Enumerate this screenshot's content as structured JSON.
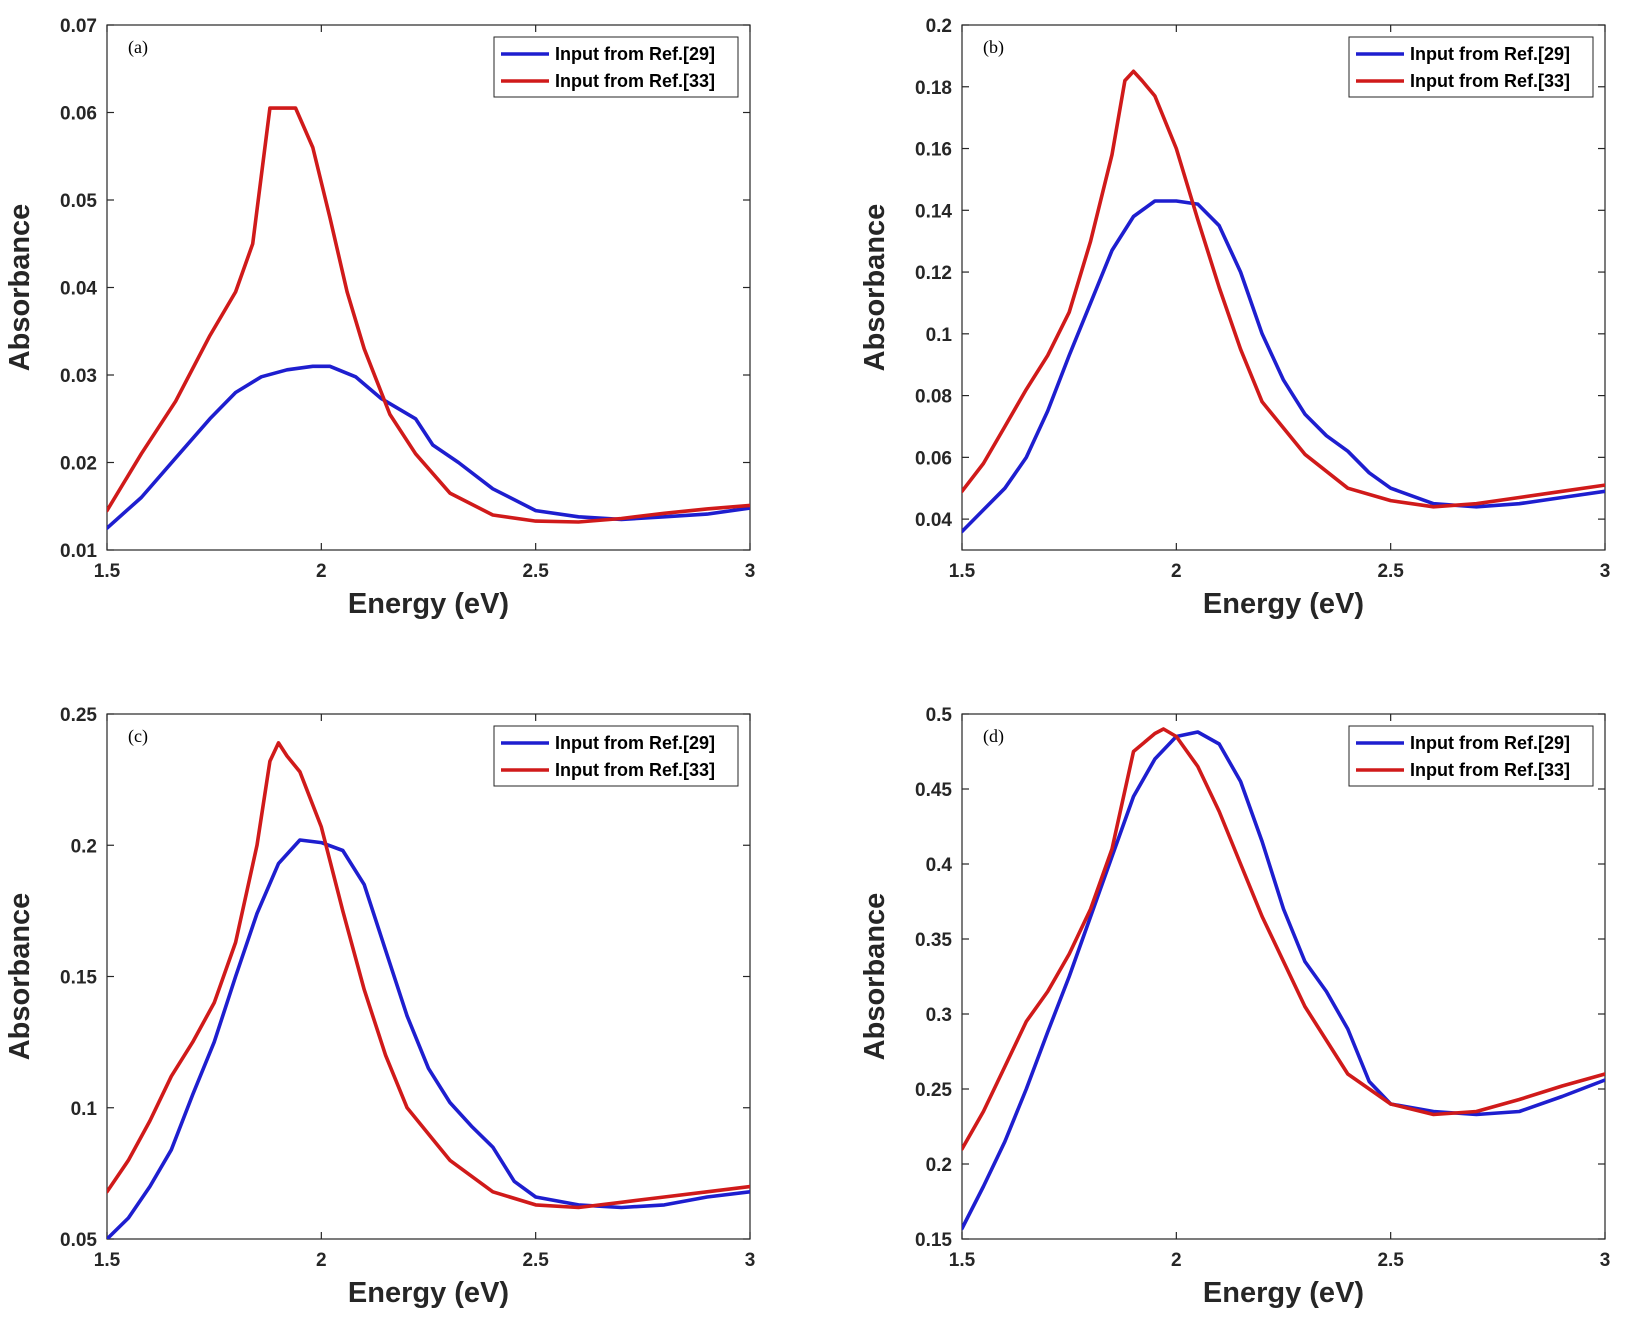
{
  "colors": {
    "series_29": "#1e1ecf",
    "series_33": "#d01a1a",
    "axes": "#262626"
  },
  "chart_data": [
    {
      "type": "line",
      "panel_label": "(a)",
      "xlabel": "Energy (eV)",
      "ylabel": "Absorbance",
      "xlim": [
        1.5,
        3
      ],
      "ylim": [
        0.01,
        0.07
      ],
      "xticks": [
        1.5,
        2,
        2.5,
        3
      ],
      "xtick_labels": [
        "1.5",
        "2",
        "2.5",
        "3"
      ],
      "yticks": [
        0.01,
        0.02,
        0.03,
        0.04,
        0.05,
        0.06,
        0.07
      ],
      "ytick_labels": [
        "0.01",
        "0.02",
        "0.03",
        "0.04",
        "0.05",
        "0.06",
        "0.07"
      ],
      "legend_position": "top-right",
      "series": [
        {
          "name": "Input from Ref.[29]",
          "color": "#1e1ecf",
          "x": [
            1.5,
            1.58,
            1.66,
            1.74,
            1.8,
            1.86,
            1.92,
            1.98,
            2.02,
            2.08,
            2.14,
            2.22,
            2.26,
            2.32,
            2.4,
            2.5,
            2.6,
            2.7,
            2.8,
            2.9,
            3.0
          ],
          "y": [
            0.0125,
            0.016,
            0.0205,
            0.025,
            0.028,
            0.0298,
            0.0306,
            0.031,
            0.031,
            0.0298,
            0.0273,
            0.025,
            0.022,
            0.02,
            0.017,
            0.0145,
            0.0138,
            0.0135,
            0.0138,
            0.0141,
            0.0148
          ]
        },
        {
          "name": "Input from Ref.[33]",
          "color": "#d01a1a",
          "x": [
            1.5,
            1.58,
            1.66,
            1.74,
            1.8,
            1.84,
            1.88,
            1.92,
            1.94,
            1.98,
            2.02,
            2.06,
            2.1,
            2.16,
            2.22,
            2.3,
            2.4,
            2.5,
            2.6,
            2.7,
            2.8,
            2.9,
            3.0
          ],
          "y": [
            0.0145,
            0.021,
            0.027,
            0.0345,
            0.0395,
            0.045,
            0.0605,
            0.0605,
            0.0605,
            0.056,
            0.048,
            0.0395,
            0.033,
            0.0255,
            0.021,
            0.0165,
            0.014,
            0.0133,
            0.0132,
            0.0136,
            0.0142,
            0.0147,
            0.0151
          ]
        }
      ]
    },
    {
      "type": "line",
      "panel_label": "(b)",
      "xlabel": "Energy (eV)",
      "ylabel": "Absorbance",
      "xlim": [
        1.5,
        3
      ],
      "ylim": [
        0.03,
        0.2
      ],
      "xticks": [
        1.5,
        2,
        2.5,
        3
      ],
      "xtick_labels": [
        "1.5",
        "2",
        "2.5",
        "3"
      ],
      "yticks": [
        0.04,
        0.06,
        0.08,
        0.1,
        0.12,
        0.14,
        0.16,
        0.18,
        0.2
      ],
      "ytick_labels": [
        "0.04",
        "0.06",
        "0.08",
        "0.1",
        "0.12",
        "0.14",
        "0.16",
        "0.18",
        "0.2"
      ],
      "legend_position": "top-right",
      "series": [
        {
          "name": "Input from Ref.[29]",
          "color": "#1e1ecf",
          "x": [
            1.5,
            1.55,
            1.6,
            1.65,
            1.7,
            1.75,
            1.8,
            1.85,
            1.9,
            1.95,
            2.0,
            2.05,
            2.1,
            2.15,
            2.2,
            2.25,
            2.3,
            2.35,
            2.4,
            2.45,
            2.5,
            2.6,
            2.7,
            2.8,
            2.9,
            3.0
          ],
          "y": [
            0.036,
            0.043,
            0.05,
            0.06,
            0.075,
            0.093,
            0.11,
            0.127,
            0.138,
            0.143,
            0.143,
            0.142,
            0.135,
            0.12,
            0.1,
            0.085,
            0.074,
            0.067,
            0.062,
            0.055,
            0.05,
            0.045,
            0.044,
            0.045,
            0.047,
            0.049
          ]
        },
        {
          "name": "Input from Ref.[33]",
          "color": "#d01a1a",
          "x": [
            1.5,
            1.55,
            1.6,
            1.65,
            1.7,
            1.75,
            1.8,
            1.85,
            1.88,
            1.9,
            1.92,
            1.95,
            2.0,
            2.05,
            2.1,
            2.15,
            2.2,
            2.3,
            2.4,
            2.5,
            2.6,
            2.7,
            2.8,
            2.9,
            3.0
          ],
          "y": [
            0.049,
            0.058,
            0.07,
            0.082,
            0.093,
            0.107,
            0.13,
            0.158,
            0.182,
            0.185,
            0.182,
            0.177,
            0.16,
            0.137,
            0.115,
            0.095,
            0.078,
            0.061,
            0.05,
            0.046,
            0.044,
            0.045,
            0.047,
            0.049,
            0.051
          ]
        }
      ]
    },
    {
      "type": "line",
      "panel_label": "(c)",
      "xlabel": "Energy (eV)",
      "ylabel": "Absorbance",
      "xlim": [
        1.5,
        3
      ],
      "ylim": [
        0.05,
        0.25
      ],
      "xticks": [
        1.5,
        2,
        2.5,
        3
      ],
      "xtick_labels": [
        "1.5",
        "2",
        "2.5",
        "3"
      ],
      "yticks": [
        0.05,
        0.1,
        0.15,
        0.2,
        0.25
      ],
      "ytick_labels": [
        "0.05",
        "0.1",
        "0.15",
        "0.2",
        "0.25"
      ],
      "legend_position": "top-right",
      "series": [
        {
          "name": "Input from Ref.[29]",
          "color": "#1e1ecf",
          "x": [
            1.5,
            1.55,
            1.6,
            1.65,
            1.7,
            1.75,
            1.8,
            1.85,
            1.9,
            1.95,
            2.0,
            2.05,
            2.1,
            2.15,
            2.2,
            2.25,
            2.3,
            2.35,
            2.4,
            2.45,
            2.5,
            2.6,
            2.7,
            2.8,
            2.9,
            3.0
          ],
          "y": [
            0.05,
            0.058,
            0.07,
            0.084,
            0.105,
            0.125,
            0.15,
            0.174,
            0.193,
            0.202,
            0.201,
            0.198,
            0.185,
            0.16,
            0.135,
            0.115,
            0.102,
            0.093,
            0.085,
            0.072,
            0.066,
            0.063,
            0.062,
            0.063,
            0.066,
            0.068
          ]
        },
        {
          "name": "Input from Ref.[33]",
          "color": "#d01a1a",
          "x": [
            1.5,
            1.55,
            1.6,
            1.65,
            1.7,
            1.75,
            1.8,
            1.85,
            1.88,
            1.9,
            1.92,
            1.95,
            2.0,
            2.05,
            2.1,
            2.15,
            2.2,
            2.3,
            2.4,
            2.5,
            2.6,
            2.7,
            2.8,
            2.9,
            3.0
          ],
          "y": [
            0.068,
            0.08,
            0.095,
            0.112,
            0.125,
            0.14,
            0.163,
            0.2,
            0.232,
            0.239,
            0.234,
            0.228,
            0.207,
            0.175,
            0.145,
            0.12,
            0.1,
            0.08,
            0.068,
            0.063,
            0.062,
            0.064,
            0.066,
            0.068,
            0.07
          ]
        }
      ]
    },
    {
      "type": "line",
      "panel_label": "(d)",
      "xlabel": "Energy (eV)",
      "ylabel": "Absorbance",
      "xlim": [
        1.5,
        3
      ],
      "ylim": [
        0.15,
        0.5
      ],
      "xticks": [
        1.5,
        2,
        2.5,
        3
      ],
      "xtick_labels": [
        "1.5",
        "2",
        "2.5",
        "3"
      ],
      "yticks": [
        0.15,
        0.2,
        0.25,
        0.3,
        0.35,
        0.4,
        0.45,
        0.5
      ],
      "ytick_labels": [
        "0.15",
        "0.2",
        "0.25",
        "0.3",
        "0.35",
        "0.4",
        "0.45",
        "0.5"
      ],
      "legend_position": "top-right",
      "series": [
        {
          "name": "Input from Ref.[29]",
          "color": "#1e1ecf",
          "x": [
            1.5,
            1.55,
            1.6,
            1.65,
            1.7,
            1.75,
            1.8,
            1.85,
            1.9,
            1.95,
            2.0,
            2.05,
            2.1,
            2.15,
            2.2,
            2.25,
            2.3,
            2.35,
            2.4,
            2.45,
            2.5,
            2.6,
            2.7,
            2.8,
            2.9,
            3.0
          ],
          "y": [
            0.157,
            0.185,
            0.215,
            0.25,
            0.288,
            0.325,
            0.365,
            0.405,
            0.445,
            0.47,
            0.485,
            0.488,
            0.48,
            0.455,
            0.415,
            0.37,
            0.335,
            0.315,
            0.29,
            0.255,
            0.24,
            0.235,
            0.233,
            0.235,
            0.245,
            0.256
          ]
        },
        {
          "name": "Input from Ref.[33]",
          "color": "#d01a1a",
          "x": [
            1.5,
            1.55,
            1.6,
            1.65,
            1.7,
            1.75,
            1.8,
            1.85,
            1.9,
            1.95,
            1.97,
            2.0,
            2.05,
            2.1,
            2.15,
            2.2,
            2.3,
            2.4,
            2.5,
            2.6,
            2.7,
            2.8,
            2.9,
            3.0
          ],
          "y": [
            0.21,
            0.235,
            0.265,
            0.295,
            0.315,
            0.34,
            0.37,
            0.41,
            0.475,
            0.487,
            0.49,
            0.485,
            0.465,
            0.435,
            0.4,
            0.365,
            0.305,
            0.26,
            0.24,
            0.233,
            0.235,
            0.243,
            0.252,
            0.26
          ]
        }
      ]
    }
  ]
}
